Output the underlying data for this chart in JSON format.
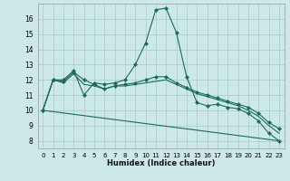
{
  "xlabel": "Humidex (Indice chaleur)",
  "background_color": "#cce8e8",
  "grid_color": "#aacfcf",
  "line_color": "#1a6b5a",
  "marker_color": "#1a6b5a",
  "xlim": [
    -0.5,
    23.5
  ],
  "ylim": [
    7.5,
    17.0
  ],
  "xticks": [
    0,
    1,
    2,
    3,
    4,
    5,
    6,
    7,
    8,
    9,
    10,
    11,
    12,
    13,
    14,
    15,
    16,
    17,
    18,
    19,
    20,
    21,
    22,
    23
  ],
  "yticks": [
    8,
    9,
    10,
    11,
    12,
    13,
    14,
    15,
    16
  ],
  "lines": [
    {
      "x": [
        0,
        1,
        2,
        3,
        4,
        5,
        6,
        7,
        8,
        9,
        10,
        11,
        12,
        13,
        14,
        15,
        16,
        17,
        18,
        19,
        20,
        21,
        22,
        23
      ],
      "y": [
        10.0,
        12.0,
        12.0,
        12.6,
        11.0,
        11.8,
        11.7,
        11.8,
        12.0,
        13.0,
        14.4,
        16.6,
        16.7,
        15.1,
        12.2,
        10.5,
        10.3,
        10.4,
        10.2,
        10.1,
        9.8,
        9.3,
        8.5,
        8.0
      ],
      "has_markers": true
    },
    {
      "x": [
        0,
        1,
        2,
        3,
        4,
        5,
        6,
        7,
        8,
        9,
        10,
        11,
        12,
        13,
        14,
        15,
        16,
        17,
        18,
        19,
        20,
        21,
        22,
        23
      ],
      "y": [
        10.0,
        12.0,
        11.9,
        12.5,
        12.0,
        11.7,
        11.4,
        11.6,
        11.7,
        11.8,
        12.0,
        12.2,
        12.2,
        11.8,
        11.5,
        11.2,
        11.0,
        10.8,
        10.6,
        10.4,
        10.2,
        9.8,
        9.2,
        8.8
      ],
      "has_markers": true
    },
    {
      "x": [
        0,
        1,
        2,
        3,
        4,
        5,
        6,
        7,
        8,
        9,
        10,
        11,
        12,
        13,
        14,
        15,
        16,
        17,
        18,
        19,
        20,
        21,
        22,
        23
      ],
      "y": [
        10.0,
        12.0,
        11.8,
        12.4,
        11.7,
        11.6,
        11.4,
        11.6,
        11.6,
        11.7,
        11.8,
        11.9,
        12.0,
        11.7,
        11.4,
        11.1,
        10.9,
        10.7,
        10.5,
        10.3,
        10.0,
        9.6,
        9.0,
        8.5
      ],
      "has_markers": false
    },
    {
      "x": [
        0,
        23
      ],
      "y": [
        10.0,
        8.0
      ],
      "has_markers": false
    }
  ]
}
